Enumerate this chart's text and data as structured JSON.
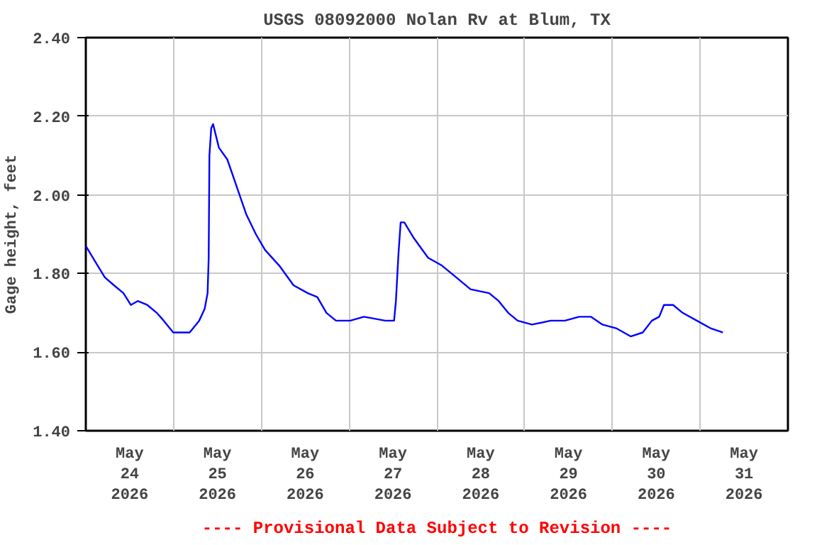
{
  "chart_data": {
    "type": "line",
    "title": "USGS 08092000 Nolan Rv at Blum, TX",
    "ylabel": "Gage height, feet",
    "annotations": [
      "---- Provisional Data Subject to Revision ----"
    ],
    "x": [
      "2026-05-24T00:00",
      "2026-05-24T02:36",
      "2026-05-24T05:12",
      "2026-05-24T07:42",
      "2026-05-24T10:18",
      "2026-05-24T12:18",
      "2026-05-24T14:12",
      "2026-05-24T16:48",
      "2026-05-24T19:24",
      "2026-05-24T21:18",
      "2026-05-24T23:54",
      "2026-05-25T04:24",
      "2026-05-25T07:00",
      "2026-05-25T08:30",
      "2026-05-25T09:18",
      "2026-05-25T09:36",
      "2026-05-25T09:48",
      "2026-05-25T10:18",
      "2026-05-25T10:48",
      "2026-05-25T12:24",
      "2026-05-25T14:42",
      "2026-05-25T17:18",
      "2026-05-25T19:54",
      "2026-05-25T22:30",
      "2026-05-26T01:00",
      "2026-05-26T04:54",
      "2026-05-26T08:48",
      "2026-05-26T12:42",
      "2026-05-26T15:18",
      "2026-05-26T17:48",
      "2026-05-26T20:24",
      "2026-05-27T00:18",
      "2026-05-27T04:06",
      "2026-05-27T09:54",
      "2026-05-27T12:18",
      "2026-05-27T12:48",
      "2026-05-27T13:30",
      "2026-05-27T14:06",
      "2026-05-27T15:06",
      "2026-05-27T17:42",
      "2026-05-27T21:36",
      "2026-05-28T01:24",
      "2026-05-28T05:18",
      "2026-05-28T09:12",
      "2026-05-28T14:18",
      "2026-05-28T16:54",
      "2026-05-28T19:30",
      "2026-05-28T22:06",
      "2026-05-29T02:00",
      "2026-05-29T07:06",
      "2026-05-29T11:00",
      "2026-05-29T14:54",
      "2026-05-29T18:06",
      "2026-05-29T21:18",
      "2026-05-30T01:12",
      "2026-05-30T05:00",
      "2026-05-30T08:18",
      "2026-05-30T10:48",
      "2026-05-30T12:48",
      "2026-05-30T14:06",
      "2026-05-30T16:36",
      "2026-05-30T19:12",
      "2026-05-30T23:06",
      "2026-05-31T03:00",
      "2026-05-31T06:12"
    ],
    "series": [
      {
        "color": "#0000ff",
        "values": [
          1.87,
          1.83,
          1.79,
          1.77,
          1.75,
          1.72,
          1.73,
          1.72,
          1.7,
          1.68,
          1.65,
          1.65,
          1.68,
          1.71,
          1.75,
          1.84,
          2.1,
          2.17,
          2.18,
          2.12,
          2.09,
          2.02,
          1.95,
          1.9,
          1.86,
          1.82,
          1.77,
          1.75,
          1.74,
          1.7,
          1.68,
          1.68,
          1.69,
          1.68,
          1.68,
          1.73,
          1.85,
          1.93,
          1.93,
          1.89,
          1.84,
          1.82,
          1.79,
          1.76,
          1.75,
          1.73,
          1.7,
          1.68,
          1.67,
          1.68,
          1.68,
          1.69,
          1.69,
          1.67,
          1.66,
          1.64,
          1.65,
          1.68,
          1.69,
          1.72,
          1.72,
          1.7,
          1.68,
          1.66,
          1.65
        ]
      }
    ],
    "xlim": [
      "2026-05-24T00:00",
      "2026-06-01T00:00"
    ],
    "xticks": [
      {
        "value": "2026-05-24T12:00",
        "label": "May\n24\n2026"
      },
      {
        "value": "2026-05-25T00:00",
        "label": null
      },
      {
        "value": "2026-05-25T12:00",
        "label": "May\n25\n2026"
      },
      {
        "value": "2026-05-26T00:00",
        "label": null
      },
      {
        "value": "2026-05-26T12:00",
        "label": "May\n26\n2026"
      },
      {
        "value": "2026-05-27T00:00",
        "label": null
      },
      {
        "value": "2026-05-27T12:00",
        "label": "May\n27\n2026"
      },
      {
        "value": "2026-05-28T00:00",
        "label": null
      },
      {
        "value": "2026-05-28T12:00",
        "label": "May\n28\n2026"
      },
      {
        "value": "2026-05-29T00:00",
        "label": null
      },
      {
        "value": "2026-05-29T12:00",
        "label": "May\n29\n2026"
      },
      {
        "value": "2026-05-30T00:00",
        "label": null
      },
      {
        "value": "2026-05-30T12:00",
        "label": "May\n30\n2026"
      },
      {
        "value": "2026-05-31T00:00",
        "label": null
      },
      {
        "value": "2026-05-31T12:00",
        "label": "May\n31\n2026"
      }
    ],
    "ylim": [
      1.4,
      2.4
    ],
    "yticks": [
      {
        "value": 1.4,
        "label": "1.40"
      },
      {
        "value": 1.6,
        "label": "1.60"
      },
      {
        "value": 1.8,
        "label": "1.80"
      },
      {
        "value": 2.0,
        "label": "2.00"
      },
      {
        "value": 2.2,
        "label": "2.20"
      },
      {
        "value": 2.4,
        "label": "2.40"
      }
    ],
    "grid": true,
    "marker": "none",
    "line_style": "solid"
  }
}
